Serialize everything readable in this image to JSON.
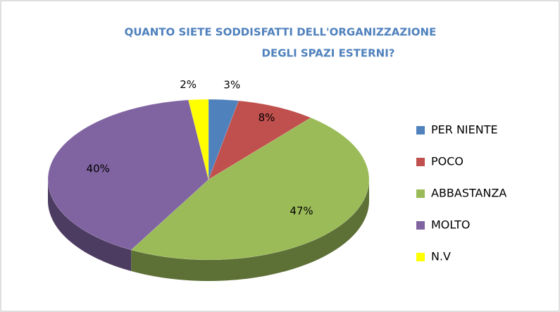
{
  "chart_data": {
    "type": "pie3d",
    "title": [
      "QUANTO SIETE SODDISFATTI DELL'ORGANIZZAZIONE",
      "DEGLI SPAZI ESTERNI?"
    ],
    "categories": [
      "PER NIENTE",
      "POCO",
      "ABBASTANZA",
      "MOLTO",
      "N.V"
    ],
    "values": [
      3,
      8,
      47,
      40,
      2
    ],
    "value_labels": [
      "3%",
      "8%",
      "47%",
      "40%",
      "2%"
    ],
    "colors": [
      "#4f81bd",
      "#c0504d",
      "#9bbb59",
      "#8064a2",
      "#ffff00"
    ],
    "legend": "right"
  }
}
